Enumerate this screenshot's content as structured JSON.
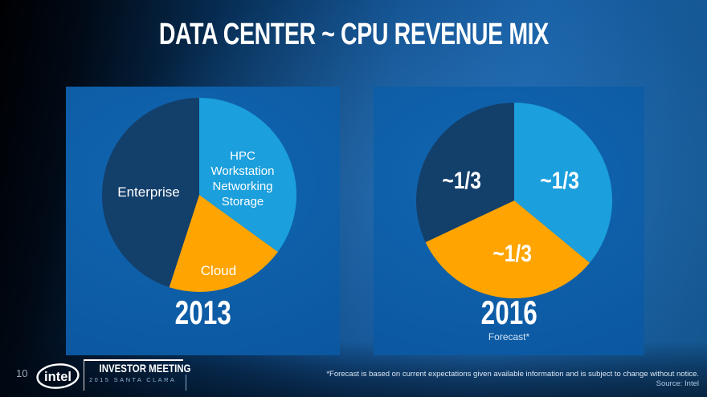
{
  "slide": {
    "title": "DATA CENTER ~ CPU REVENUE MIX",
    "page_number": "10",
    "logo_text": "intel",
    "event": {
      "name": "INVESTOR MEETING",
      "detail": "2015 SANTA CLARA"
    },
    "footnote": "*Forecast is based on current expectations given available information and is subject to change without notice.",
    "source": "Source: Intel"
  },
  "colors": {
    "panel_blue": "#0D5FA7",
    "slice_light_blue": "#1B9FDD",
    "slice_orange": "#FFA400",
    "slice_navy": "#133F6B",
    "background_right_blue": "#185FA5",
    "background_left_black": "#000002"
  },
  "chart_data": [
    {
      "type": "pie",
      "title": "2013",
      "start_angle": 0,
      "legend_position": "labels-inside",
      "slices": [
        {
          "label": "HPC Workstation Networking Storage",
          "lines": [
            "HPC",
            "Workstation",
            "Networking",
            "Storage"
          ],
          "value": 35,
          "color": "#1B9FDD"
        },
        {
          "label": "Cloud",
          "value": 20,
          "color": "#FFA400"
        },
        {
          "label": "Enterprise",
          "value": 45,
          "color": "#133F6B"
        }
      ]
    },
    {
      "type": "pie",
      "title": "2016",
      "subtitle": "Forecast*",
      "start_angle": 0,
      "legend_position": "labels-inside",
      "slices": [
        {
          "label": "~1/3",
          "value": 36,
          "color": "#1B9FDD"
        },
        {
          "label": "~1/3",
          "value": 32,
          "color": "#FFA400"
        },
        {
          "label": "~1/3",
          "value": 32,
          "color": "#133F6B"
        }
      ]
    }
  ]
}
